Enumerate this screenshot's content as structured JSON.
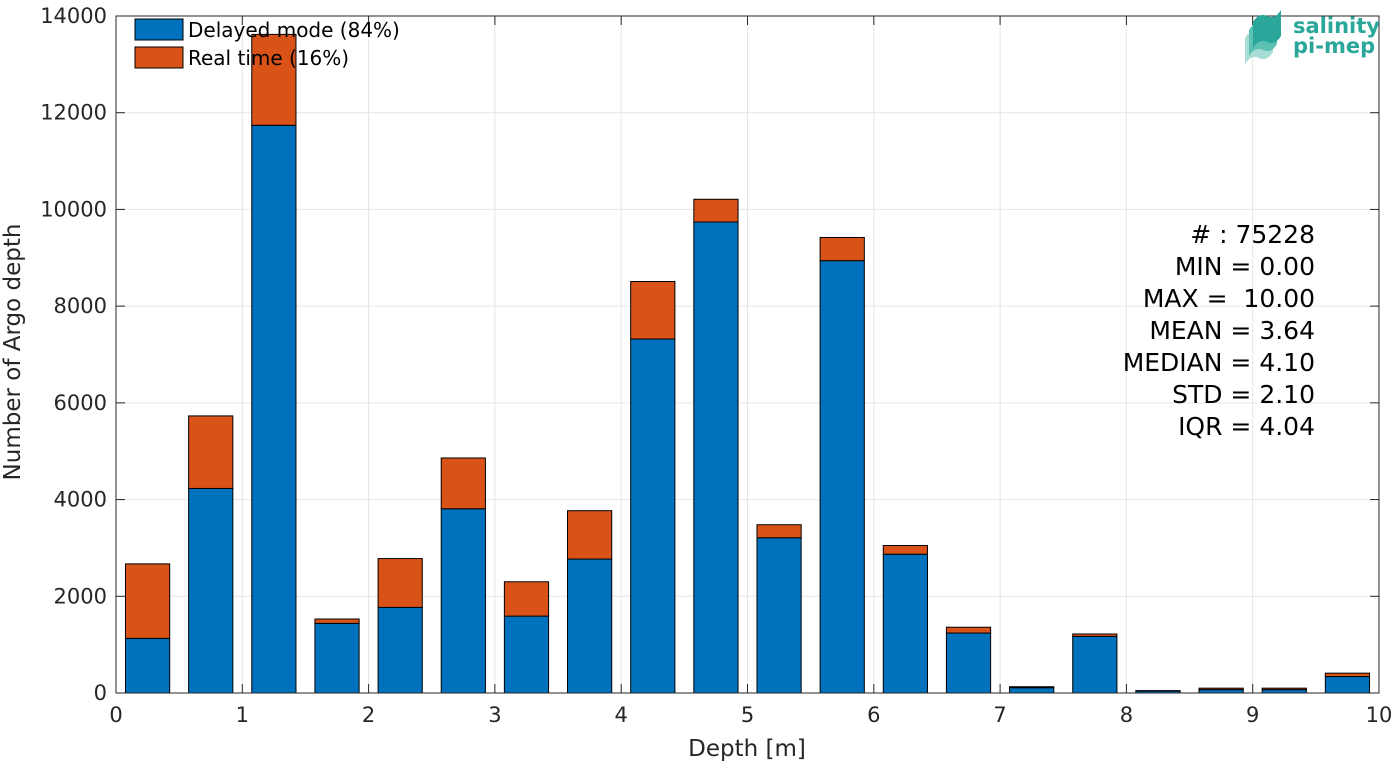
{
  "chart_data": {
    "type": "bar",
    "stacked": true,
    "xlabel": "Depth [m]",
    "ylabel": "Number of Argo depth",
    "xlim": [
      0,
      10
    ],
    "ylim": [
      0,
      14000
    ],
    "xticks": [
      "0",
      "1",
      "2",
      "3",
      "4",
      "5",
      "6",
      "7",
      "8",
      "9",
      "10"
    ],
    "yticks": [
      "0",
      "2000",
      "4000",
      "6000",
      "8000",
      "10000",
      "12000",
      "14000"
    ],
    "grid": true,
    "legend_position": "top-left",
    "bin_width": 0.5,
    "bin_centers": [
      0.25,
      0.75,
      1.25,
      1.75,
      2.25,
      2.75,
      3.25,
      3.75,
      4.25,
      4.75,
      5.25,
      5.75,
      6.25,
      6.75,
      7.25,
      7.75,
      8.25,
      8.75,
      9.25,
      9.75
    ],
    "series": [
      {
        "name": "Delayed mode (84%)",
        "color": "#0072BD",
        "values": [
          1130,
          4230,
          11740,
          1440,
          1770,
          3810,
          1590,
          2770,
          7320,
          9740,
          3210,
          8940,
          2870,
          1240,
          110,
          1170,
          40,
          70,
          70,
          340
        ]
      },
      {
        "name": "Real time (16%)",
        "color": "#D95319",
        "values": [
          1540,
          1500,
          1880,
          90,
          1010,
          1050,
          710,
          1000,
          1190,
          470,
          270,
          480,
          180,
          120,
          20,
          50,
          10,
          30,
          30,
          70
        ]
      }
    ],
    "annotations": [
      "# : 75228",
      "MIN = 0.00",
      "MAX =  10.00",
      "MEAN = 3.64",
      "MEDIAN = 4.10",
      "STD = 2.10",
      "IQR = 4.04"
    ]
  },
  "logo": {
    "line1": "salinity",
    "line2": "pi-mep",
    "color": "#2aa69a"
  }
}
